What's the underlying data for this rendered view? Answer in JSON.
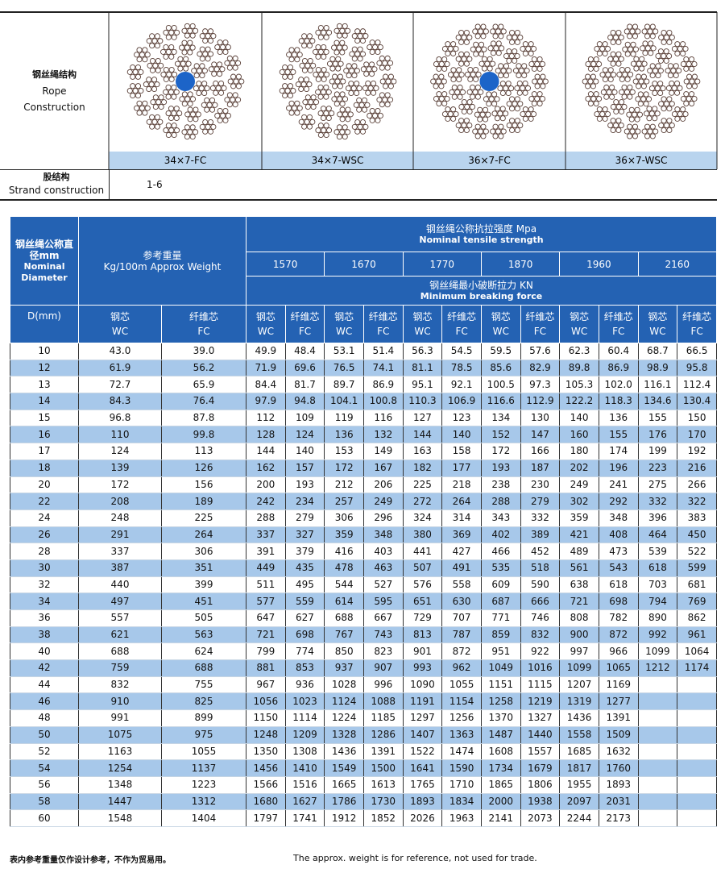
{
  "rope": {
    "label_cn": "钢丝绳结构",
    "label_en_1": "Rope",
    "label_en_2": "Construction",
    "types": [
      "34×7-FC",
      "34×7-WSC",
      "36×7-FC",
      "36×7-WSC"
    ]
  },
  "strand": {
    "label_cn": "股结构",
    "label_en": "Strand construction",
    "value": "1-6"
  },
  "table": {
    "header": {
      "diam_cn": "钢丝绳公称直径mm",
      "diam_en": "Nominal Diameter",
      "weight_cn": "参考重量",
      "weight_en": "Kg/100m Approx Weight",
      "tensile_cn": "钢丝绳公称抗拉强度 Mpa",
      "tensile_en": "Nominal tensile strength",
      "force_cn": "钢丝绳最小破断拉力 KN",
      "force_en": "Minimum breaking force",
      "d": "D(mm)",
      "wc_cn": "钢芯",
      "wc_en": "WC",
      "fc_cn": "纤维芯",
      "fc_en": "FC"
    },
    "grades": [
      "1570",
      "1670",
      "1770",
      "1870",
      "1960",
      "2160"
    ],
    "rows": [
      [
        "10",
        "43.0",
        "39.0",
        "49.9",
        "48.4",
        "53.1",
        "51.4",
        "56.3",
        "54.5",
        "59.5",
        "57.6",
        "62.3",
        "60.4",
        "68.7",
        "66.5"
      ],
      [
        "12",
        "61.9",
        "56.2",
        "71.9",
        "69.6",
        "76.5",
        "74.1",
        "81.1",
        "78.5",
        "85.6",
        "82.9",
        "89.8",
        "86.9",
        "98.9",
        "95.8"
      ],
      [
        "13",
        "72.7",
        "65.9",
        "84.4",
        "81.7",
        "89.7",
        "86.9",
        "95.1",
        "92.1",
        "100.5",
        "97.3",
        "105.3",
        "102.0",
        "116.1",
        "112.4"
      ],
      [
        "14",
        "84.3",
        "76.4",
        "97.9",
        "94.8",
        "104.1",
        "100.8",
        "110.3",
        "106.9",
        "116.6",
        "112.9",
        "122.2",
        "118.3",
        "134.6",
        "130.4"
      ],
      [
        "15",
        "96.8",
        "87.8",
        "112",
        "109",
        "119",
        "116",
        "127",
        "123",
        "134",
        "130",
        "140",
        "136",
        "155",
        "150"
      ],
      [
        "16",
        "110",
        "99.8",
        "128",
        "124",
        "136",
        "132",
        "144",
        "140",
        "152",
        "147",
        "160",
        "155",
        "176",
        "170"
      ],
      [
        "17",
        "124",
        "113",
        "144",
        "140",
        "153",
        "149",
        "163",
        "158",
        "172",
        "166",
        "180",
        "174",
        "199",
        "192"
      ],
      [
        "18",
        "139",
        "126",
        "162",
        "157",
        "172",
        "167",
        "182",
        "177",
        "193",
        "187",
        "202",
        "196",
        "223",
        "216"
      ],
      [
        "20",
        "172",
        "156",
        "200",
        "193",
        "212",
        "206",
        "225",
        "218",
        "238",
        "230",
        "249",
        "241",
        "275",
        "266"
      ],
      [
        "22",
        "208",
        "189",
        "242",
        "234",
        "257",
        "249",
        "272",
        "264",
        "288",
        "279",
        "302",
        "292",
        "332",
        "322"
      ],
      [
        "24",
        "248",
        "225",
        "288",
        "279",
        "306",
        "296",
        "324",
        "314",
        "343",
        "332",
        "359",
        "348",
        "396",
        "383"
      ],
      [
        "26",
        "291",
        "264",
        "337",
        "327",
        "359",
        "348",
        "380",
        "369",
        "402",
        "389",
        "421",
        "408",
        "464",
        "450"
      ],
      [
        "28",
        "337",
        "306",
        "391",
        "379",
        "416",
        "403",
        "441",
        "427",
        "466",
        "452",
        "489",
        "473",
        "539",
        "522"
      ],
      [
        "30",
        "387",
        "351",
        "449",
        "435",
        "478",
        "463",
        "507",
        "491",
        "535",
        "518",
        "561",
        "543",
        "618",
        "599"
      ],
      [
        "32",
        "440",
        "399",
        "511",
        "495",
        "544",
        "527",
        "576",
        "558",
        "609",
        "590",
        "638",
        "618",
        "703",
        "681"
      ],
      [
        "34",
        "497",
        "451",
        "577",
        "559",
        "614",
        "595",
        "651",
        "630",
        "687",
        "666",
        "721",
        "698",
        "794",
        "769"
      ],
      [
        "36",
        "557",
        "505",
        "647",
        "627",
        "688",
        "667",
        "729",
        "707",
        "771",
        "746",
        "808",
        "782",
        "890",
        "862"
      ],
      [
        "38",
        "621",
        "563",
        "721",
        "698",
        "767",
        "743",
        "813",
        "787",
        "859",
        "832",
        "900",
        "872",
        "992",
        "961"
      ],
      [
        "40",
        "688",
        "624",
        "799",
        "774",
        "850",
        "823",
        "901",
        "872",
        "951",
        "922",
        "997",
        "966",
        "1099",
        "1064"
      ],
      [
        "42",
        "759",
        "688",
        "881",
        "853",
        "937",
        "907",
        "993",
        "962",
        "1049",
        "1016",
        "1099",
        "1065",
        "1212",
        "1174"
      ],
      [
        "44",
        "832",
        "755",
        "967",
        "936",
        "1028",
        "996",
        "1090",
        "1055",
        "1151",
        "1115",
        "1207",
        "1169",
        null,
        null
      ],
      [
        "46",
        "910",
        "825",
        "1056",
        "1023",
        "1124",
        "1088",
        "1191",
        "1154",
        "1258",
        "1219",
        "1319",
        "1277",
        null,
        null
      ],
      [
        "48",
        "991",
        "899",
        "1150",
        "1114",
        "1224",
        "1185",
        "1297",
        "1256",
        "1370",
        "1327",
        "1436",
        "1391",
        null,
        null
      ],
      [
        "50",
        "1075",
        "975",
        "1248",
        "1209",
        "1328",
        "1286",
        "1407",
        "1363",
        "1487",
        "1440",
        "1558",
        "1509",
        null,
        null
      ],
      [
        "52",
        "1163",
        "1055",
        "1350",
        "1308",
        "1436",
        "1391",
        "1522",
        "1474",
        "1608",
        "1557",
        "1685",
        "1632",
        null,
        null
      ],
      [
        "54",
        "1254",
        "1137",
        "1456",
        "1410",
        "1549",
        "1500",
        "1641",
        "1590",
        "1734",
        "1679",
        "1817",
        "1760",
        null,
        null
      ],
      [
        "56",
        "1348",
        "1223",
        "1566",
        "1516",
        "1665",
        "1613",
        "1765",
        "1710",
        "1865",
        "1806",
        "1955",
        "1893",
        null,
        null
      ],
      [
        "58",
        "1447",
        "1312",
        "1680",
        "1627",
        "1786",
        "1730",
        "1893",
        "1834",
        "2000",
        "1938",
        "2097",
        "2031",
        null,
        null
      ],
      [
        "60",
        "1548",
        "1404",
        "1797",
        "1741",
        "1912",
        "1852",
        "2026",
        "1963",
        "2141",
        "2073",
        "2244",
        "2173",
        null,
        null
      ]
    ]
  },
  "footnote": {
    "cn": "表内参考重量仅作设计参考，不作为贸易用。",
    "en": "The approx. weight is for reference, not used for trade."
  }
}
